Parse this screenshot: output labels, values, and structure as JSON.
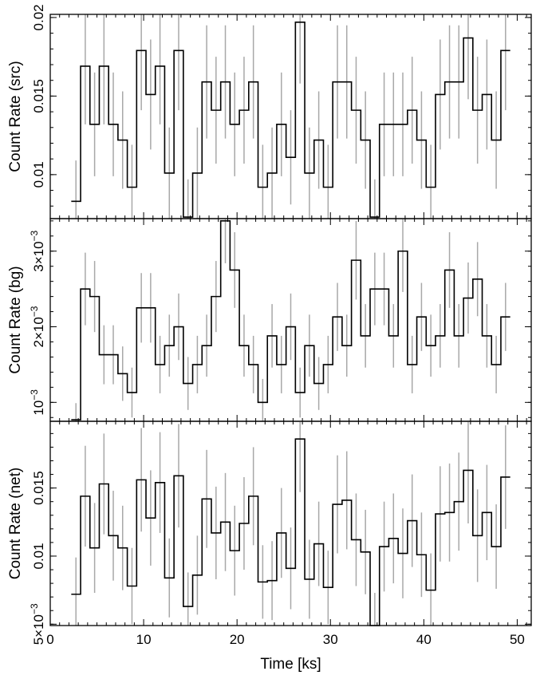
{
  "chart_data": [
    {
      "type": "line",
      "style": "step histogram with error bars",
      "ylabel": "Count Rate (src)",
      "xlim": [
        0,
        51.5
      ],
      "ylim": [
        0.0072,
        0.0202
      ],
      "y_ticks": [
        0.01,
        0.015,
        0.02
      ],
      "y_tick_labels": [
        "0.01",
        "0.015",
        "0.02"
      ],
      "x": [
        2.75,
        3.75,
        4.75,
        5.75,
        6.75,
        7.75,
        8.75,
        9.75,
        10.75,
        11.75,
        12.75,
        13.75,
        14.75,
        15.75,
        16.75,
        17.75,
        18.75,
        19.75,
        20.75,
        21.75,
        22.75,
        23.75,
        24.75,
        25.75,
        26.75,
        27.75,
        28.75,
        29.75,
        30.75,
        31.75,
        32.75,
        33.75,
        34.75,
        35.75,
        36.75,
        37.75,
        38.75,
        39.75,
        40.75,
        41.75,
        42.75,
        43.75,
        44.75,
        45.75,
        46.75,
        47.75,
        48.75
      ],
      "values": [
        0.0083,
        0.0169,
        0.0132,
        0.0169,
        0.0132,
        0.0122,
        0.0092,
        0.0179,
        0.0151,
        0.0169,
        0.0101,
        0.0179,
        0.0073,
        0.0101,
        0.0159,
        0.0141,
        0.0159,
        0.0132,
        0.0141,
        0.0159,
        0.0092,
        0.0101,
        0.0132,
        0.0111,
        0.0197,
        0.0101,
        0.0122,
        0.0092,
        0.0159,
        0.0159,
        0.0141,
        0.0122,
        0.0073,
        0.0132,
        0.0132,
        0.0132,
        0.0141,
        0.0122,
        0.0092,
        0.0151,
        0.0159,
        0.0159,
        0.0187,
        0.0141,
        0.0151,
        0.0122,
        0.0179
      ],
      "errors": [
        0.0026,
        0.0037,
        0.0033,
        0.0037,
        0.0033,
        0.0031,
        0.0027,
        0.0038,
        0.0035,
        0.0037,
        0.0029,
        0.0038,
        0.0024,
        0.0029,
        0.0036,
        0.0034,
        0.0036,
        0.0033,
        0.0034,
        0.0036,
        0.0027,
        0.0029,
        0.0033,
        0.003,
        0.0039,
        0.0029,
        0.0031,
        0.0027,
        0.0036,
        0.0036,
        0.0034,
        0.0031,
        0.0024,
        0.0033,
        0.0033,
        0.0033,
        0.0034,
        0.0031,
        0.0027,
        0.0035,
        0.0036,
        0.0036,
        0.0039,
        0.0034,
        0.0035,
        0.0031,
        0.0038
      ]
    },
    {
      "type": "line",
      "style": "step histogram with error bars",
      "ylabel": "Count Rate (bg)",
      "xlim": [
        0,
        51.5
      ],
      "ylim": [
        0.00075,
        0.00343
      ],
      "y_ticks": [
        0.001,
        0.002,
        0.003
      ],
      "y_tick_labels": [
        {
          "mantissa": "",
          "base": "10",
          "exponent": "−3"
        },
        {
          "mantissa": "2×",
          "base": "10",
          "exponent": "−3"
        },
        {
          "mantissa": "3×",
          "base": "10",
          "exponent": "−3"
        }
      ],
      "x": [
        2.75,
        3.75,
        4.75,
        5.75,
        6.75,
        7.75,
        8.75,
        9.75,
        10.75,
        11.75,
        12.75,
        13.75,
        14.75,
        15.75,
        16.75,
        17.75,
        18.75,
        19.75,
        20.75,
        21.75,
        22.75,
        23.75,
        24.75,
        25.75,
        26.75,
        27.75,
        28.75,
        29.75,
        30.75,
        31.75,
        32.75,
        33.75,
        34.75,
        35.75,
        36.75,
        37.75,
        38.75,
        39.75,
        40.75,
        41.75,
        42.75,
        43.75,
        44.75,
        45.75,
        46.75,
        47.75,
        48.75
      ],
      "values": [
        0.00077,
        0.0025,
        0.0024,
        0.00163,
        0.00163,
        0.00138,
        0.00113,
        0.00225,
        0.00225,
        0.0015,
        0.00175,
        0.002,
        0.00125,
        0.0015,
        0.00175,
        0.0024,
        0.0034,
        0.00275,
        0.00175,
        0.0015,
        0.001,
        0.00188,
        0.0015,
        0.002,
        0.00113,
        0.00175,
        0.00125,
        0.0015,
        0.00213,
        0.00175,
        0.00288,
        0.00188,
        0.0025,
        0.0025,
        0.00188,
        0.003,
        0.0015,
        0.00213,
        0.00175,
        0.00188,
        0.00275,
        0.00188,
        0.00238,
        0.00263,
        0.00188,
        0.0015,
        0.00213
      ],
      "errors": [
        0.00022,
        0.00048,
        0.00047,
        0.00039,
        0.00039,
        0.00036,
        0.00033,
        0.00046,
        0.00046,
        0.00038,
        0.00041,
        0.00044,
        0.00035,
        0.00038,
        0.00041,
        0.00047,
        0.00056,
        0.0005,
        0.00041,
        0.00038,
        0.00031,
        0.00042,
        0.00038,
        0.00044,
        0.00033,
        0.00041,
        0.00035,
        0.00038,
        0.00045,
        0.00041,
        0.00052,
        0.00042,
        0.00048,
        0.00048,
        0.00042,
        0.00054,
        0.00038,
        0.00045,
        0.00041,
        0.00042,
        0.0005,
        0.00042,
        0.00047,
        0.00049,
        0.00042,
        0.00038,
        0.00045
      ]
    },
    {
      "type": "line",
      "style": "step histogram with error bars",
      "ylabel": "Count Rate (net)",
      "xlabel": "Time [ks]",
      "xlim": [
        0,
        51.5
      ],
      "x_ticks": [
        0,
        10,
        20,
        30,
        40,
        50
      ],
      "x_tick_labels": [
        "0",
        "10",
        "20",
        "30",
        "40",
        "50"
      ],
      "ylim": [
        0.0049,
        0.0199
      ],
      "y_ticks": [
        0.005,
        0.01,
        0.015
      ],
      "y_tick_labels": [
        {
          "mantissa": "5×",
          "base": "10",
          "exponent": "−3"
        },
        {
          "text": "0.01"
        },
        {
          "text": "0.015"
        }
      ],
      "x": [
        2.75,
        3.75,
        4.75,
        5.75,
        6.75,
        7.75,
        8.75,
        9.75,
        10.75,
        11.75,
        12.75,
        13.75,
        14.75,
        15.75,
        16.75,
        17.75,
        18.75,
        19.75,
        20.75,
        21.75,
        22.75,
        23.75,
        24.75,
        25.75,
        26.75,
        27.75,
        28.75,
        29.75,
        30.75,
        31.75,
        32.75,
        33.75,
        34.75,
        35.75,
        36.75,
        37.75,
        38.75,
        39.75,
        40.75,
        41.75,
        42.75,
        43.75,
        44.75,
        45.75,
        46.75,
        47.75,
        48.75
      ],
      "values": [
        0.0072,
        0.0144,
        0.0106,
        0.0153,
        0.0115,
        0.0106,
        0.0078,
        0.0156,
        0.0128,
        0.0154,
        0.0084,
        0.0159,
        0.0063,
        0.0086,
        0.0142,
        0.0117,
        0.0125,
        0.0104,
        0.0124,
        0.0144,
        0.0081,
        0.0082,
        0.0117,
        0.0091,
        0.0186,
        0.0083,
        0.0109,
        0.0077,
        0.0138,
        0.0141,
        0.0112,
        0.0103,
        0.0048,
        0.0107,
        0.0113,
        0.0102,
        0.0126,
        0.0101,
        0.0075,
        0.0131,
        0.0132,
        0.014,
        0.0163,
        0.0115,
        0.0132,
        0.0107,
        0.0158
      ],
      "errors": [
        0.0027,
        0.0037,
        0.0033,
        0.0037,
        0.0033,
        0.0031,
        0.0028,
        0.0038,
        0.0035,
        0.0037,
        0.0029,
        0.0038,
        0.0025,
        0.0029,
        0.0036,
        0.0034,
        0.0036,
        0.0033,
        0.0034,
        0.0036,
        0.0027,
        0.0029,
        0.0033,
        0.003,
        0.0039,
        0.0029,
        0.0031,
        0.0027,
        0.0036,
        0.0036,
        0.0034,
        0.0031,
        0.0025,
        0.0033,
        0.0033,
        0.0033,
        0.0034,
        0.0031,
        0.0027,
        0.0035,
        0.0036,
        0.0036,
        0.0039,
        0.0034,
        0.0035,
        0.0031,
        0.0038
      ]
    }
  ],
  "colors": {
    "histogram": "#000000",
    "error_bars": "#a8a8a8",
    "background": "#ffffff"
  }
}
